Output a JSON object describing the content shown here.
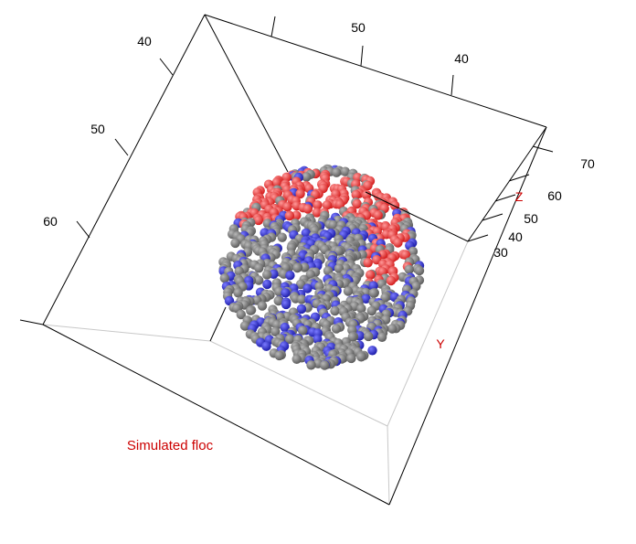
{
  "chart_data": {
    "type": "scatter3d",
    "title": "",
    "label": "Simulated floc",
    "ylabel": "Y",
    "zlabel": "Z",
    "label_color": "#cc0000",
    "x_ticks": [
      "40",
      "50",
      "60"
    ],
    "y_ticks": [
      "50",
      "40"
    ],
    "z_ticks": [
      "30",
      "40",
      "50",
      "60",
      "70"
    ],
    "box_color": "#000000",
    "grid": false,
    "series": [
      {
        "color": "#5a5a5a",
        "highlight": "#b8b8b8"
      },
      {
        "color": "#1c1ca8",
        "highlight": "#7a7aff"
      },
      {
        "color": "#d21a1a",
        "highlight": "#ff9a9a"
      }
    ]
  }
}
